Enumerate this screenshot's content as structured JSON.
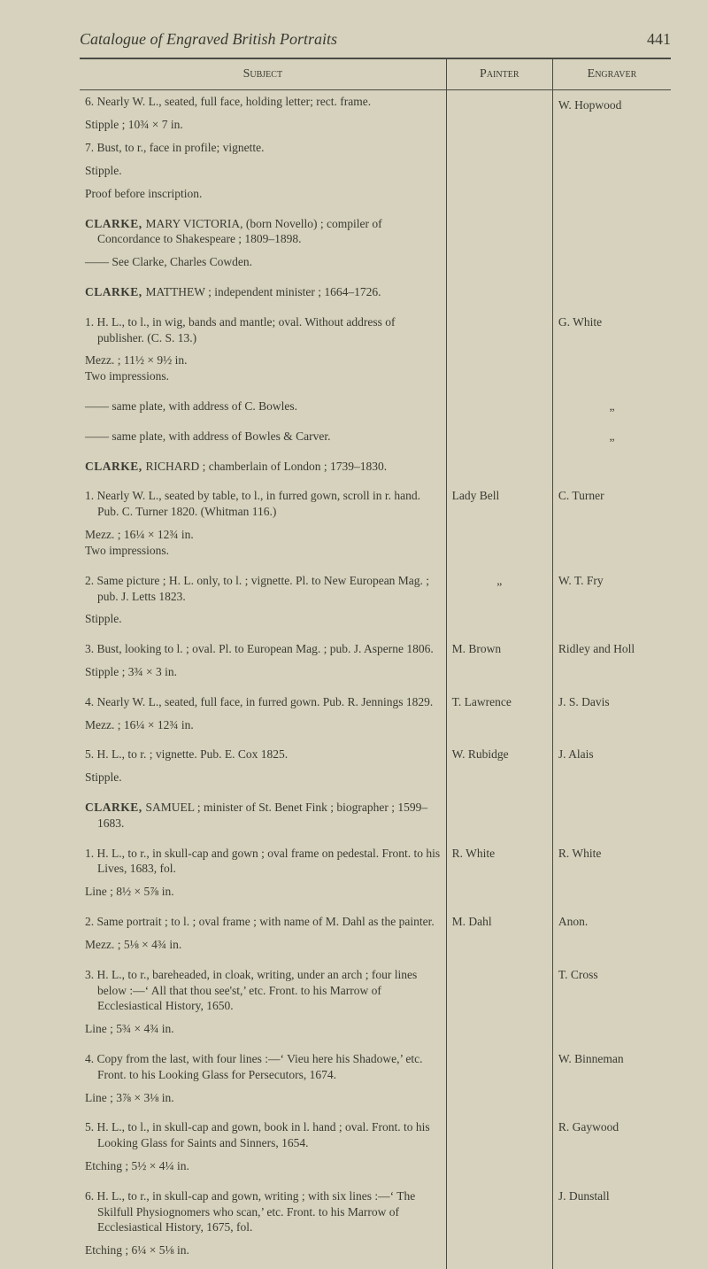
{
  "running_title": "Catalogue of Engraved British Portraits",
  "page_number": "441",
  "columns": {
    "subject": "Subject",
    "painter": "Painter",
    "engraver": "Engraver"
  },
  "e0": {
    "t1": "6. Nearly W. L., seated, full face, holding letter; rect. frame.",
    "t2": "Stipple ; 10¾ × 7 in.",
    "t3": "7. Bust, to r., face in profile; vignette.",
    "t4": "Stipple.",
    "t5": "Proof before inscription.",
    "engraver": "W. Hopwood"
  },
  "e1": {
    "head": "CLARKE, ",
    "rest": "MARY VICTORIA, (born Novello) ; compiler of Concordance to Shakespeare ; 1809–1898.",
    "sub": "—— See Clarke, Charles Cowden."
  },
  "e2": {
    "head": "CLARKE, ",
    "rest": "MATTHEW ; independent minister ; 1664–1726.",
    "t1": "1. H. L., to l., in wig, bands and mantle; oval. Without address of publisher. (C. S. 13.)",
    "t1s": "Mezz. ; 11½ × 9½ in.\nTwo impressions.",
    "t2": "—— same plate, with address of C. Bowles.",
    "t3": "—— same plate, with address of Bowles & Carver.",
    "engraver": "G. White",
    "ditto1": "„",
    "ditto2": "„"
  },
  "e3": {
    "head": "CLARKE, ",
    "rest": "RICHARD ; chamberlain of London ; 1739–1830.",
    "i1": "1. Nearly W. L., seated by table, to l., in furred gown, scroll in r. hand. Pub. C. Turner 1820. (Whitman 116.)",
    "i1s": "Mezz. ; 16¼ × 12¾ in.\nTwo impressions.",
    "p1": "Lady Bell",
    "g1": "C. Turner",
    "i2": "2. Same picture ; H. L. only, to l. ; vignette. Pl. to New European Mag. ; pub. J. Letts 1823.",
    "i2s": "Stipple.",
    "p2": "„",
    "g2": "W. T. Fry",
    "i3": "3. Bust, looking to l. ; oval. Pl. to European Mag. ; pub. J. Asperne 1806.",
    "i3s": "Stipple ; 3¾ × 3 in.",
    "p3": "M. Brown",
    "g3": "Ridley and Holl",
    "i4": "4. Nearly W. L., seated, full face, in furred gown. Pub. R. Jennings 1829.",
    "i4s": "Mezz. ; 16¼ × 12¾ in.",
    "p4": "T. Lawrence",
    "g4": "J. S. Davis",
    "i5": "5. H. L., to r. ; vignette. Pub. E. Cox 1825.",
    "i5s": "Stipple.",
    "p5": "W. Rubidge",
    "g5": "J. Alais"
  },
  "e4": {
    "head": "CLARKE, ",
    "rest": "SAMUEL ; minister of St. Benet Fink ; biographer ; 1599–1683.",
    "i1": "1. H. L., to r., in skull-cap and gown ; oval frame on pedestal. Front. to his Lives, 1683, fol.",
    "i1s": "Line ; 8½ × 5⅞ in.",
    "p1": "R. White",
    "g1": "R. White",
    "i2": "2. Same portrait ; to l. ; oval frame ; with name of M. Dahl as the painter.",
    "i2s": "Mezz. ; 5⅛ × 4¾ in.",
    "p2": "M. Dahl",
    "g2": "Anon.",
    "i3": "3. H. L., to r., bareheaded, in cloak, writing, under an arch ; four lines below :—‘ All that thou see'st,’ etc. Front. to his Marrow of Ecclesiastical History, 1650.",
    "i3s": "Line ; 5¾ × 4¾ in.",
    "g3": "T. Cross",
    "i4": "4. Copy from the last, with four lines :—‘ Vieu here his Shadowe,’ etc. Front. to his Looking Glass for Persecutors, 1674.",
    "i4s": "Line ; 3⅞ × 3⅛ in.",
    "g4": "W. Binneman",
    "i5": "5. H. L., to l., in skull-cap and gown, book in l. hand ; oval. Front. to his Looking Glass for Saints and Sinners, 1654.",
    "i5s": "Etching ; 5½ × 4¼ in.",
    "g5": "R. Gaywood",
    "i6": "6. H. L., to r., in skull-cap and gown, writing ; with six lines :—‘ The Skilfull Physiognomers who scan,’ etc. Front. to his Marrow of Ecclesiastical History, 1675, fol.",
    "i6s": "Etching ; 6¼ × 5⅛ in.",
    "g6": "J. Dunstall"
  }
}
